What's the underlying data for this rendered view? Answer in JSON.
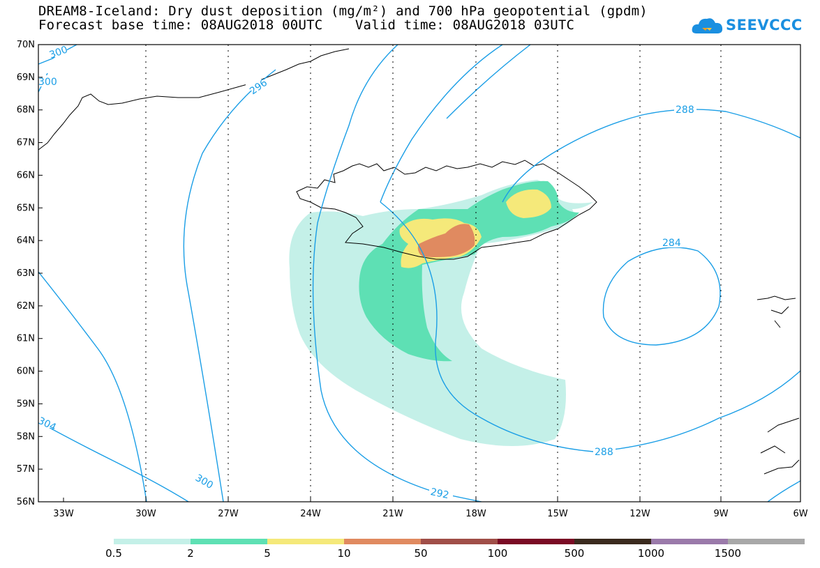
{
  "title": {
    "line1": "DREAM8-Iceland: Dry dust deposition (mg/m²) and 700 hPa geopotential (gpdm)",
    "line2": "Forecast base time: 08AUG2018 00UTC    Valid time: 08AUG2018 03UTC"
  },
  "logo": {
    "text": "SEEVCCC",
    "icon": "cloud-icon"
  },
  "map": {
    "lat_labels": [
      "70N",
      "69N",
      "68N",
      "67N",
      "66N",
      "65N",
      "64N",
      "63N",
      "62N",
      "61N",
      "60N",
      "59N",
      "58N",
      "57N",
      "56N"
    ],
    "lon_labels": [
      "33W",
      "30W",
      "27W",
      "24W",
      "21W",
      "18W",
      "15W",
      "12W",
      "9W",
      "6W"
    ],
    "grid": true,
    "contour_labels": [
      "300",
      "300",
      "296",
      "288",
      "284",
      "288",
      "292",
      "300",
      "304"
    ],
    "contour_color": "#1a9ee6"
  },
  "legend": {
    "labels": [
      "0.5",
      "2",
      "5",
      "10",
      "50",
      "100",
      "500",
      "1000",
      "1500"
    ],
    "colors": [
      "#c4f0e8",
      "#5ee0b4",
      "#f5e97a",
      "#e08a60",
      "#a04e48",
      "#7a0a24",
      "#3a2a1e",
      "#9a7aaa",
      "#a8a8a8"
    ]
  }
}
